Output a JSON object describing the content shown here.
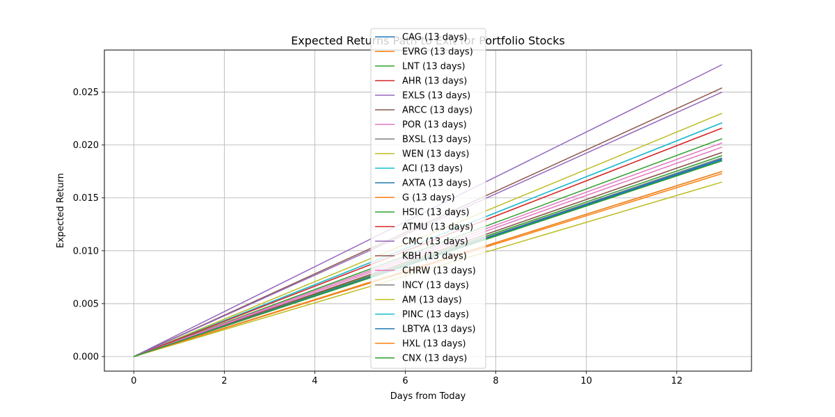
{
  "chart_data": {
    "type": "line",
    "title": "Expected Returns Path to Exit for Portfolio Stocks",
    "xlabel": "Days from Today",
    "ylabel": "Expected Return",
    "xlim": [
      -0.65,
      13.65
    ],
    "ylim": [
      -0.00138,
      0.02898
    ],
    "xticks": [
      0,
      2,
      4,
      6,
      8,
      10,
      12
    ],
    "xtick_labels": [
      "0",
      "2",
      "4",
      "6",
      "8",
      "10",
      "12"
    ],
    "yticks": [
      0.0,
      0.005,
      0.01,
      0.015,
      0.02,
      0.025
    ],
    "ytick_labels": [
      "0.000",
      "0.005",
      "0.010",
      "0.015",
      "0.020",
      "0.025"
    ],
    "grid": true,
    "legend_position": "upper-center",
    "series": [
      {
        "name": "CAG (13 days)",
        "color": "#1f77b4",
        "x": [
          0,
          13
        ],
        "y": [
          0.0,
          0.0221
        ]
      },
      {
        "name": "EVRG (13 days)",
        "color": "#ff7f0e",
        "x": [
          0,
          13
        ],
        "y": [
          0.0,
          0.0173
        ]
      },
      {
        "name": "LNT (13 days)",
        "color": "#2ca02c",
        "x": [
          0,
          13
        ],
        "y": [
          0.0,
          0.0206
        ]
      },
      {
        "name": "AHR (13 days)",
        "color": "#d62728",
        "x": [
          0,
          13
        ],
        "y": [
          0.0,
          0.0216
        ]
      },
      {
        "name": "EXLS (13 days)",
        "color": "#9467bd",
        "x": [
          0,
          13
        ],
        "y": [
          0.0,
          0.0276
        ]
      },
      {
        "name": "ARCC (13 days)",
        "color": "#8c564b",
        "x": [
          0,
          13
        ],
        "y": [
          0.0,
          0.0254
        ]
      },
      {
        "name": "POR (13 days)",
        "color": "#e377c2",
        "x": [
          0,
          13
        ],
        "y": [
          0.0,
          0.0202
        ]
      },
      {
        "name": "BXSL (13 days)",
        "color": "#7f7f7f",
        "x": [
          0,
          13
        ],
        "y": [
          0.0,
          0.0193
        ]
      },
      {
        "name": "WEN (13 days)",
        "color": "#bcbd22",
        "x": [
          0,
          13
        ],
        "y": [
          0.0,
          0.023
        ]
      },
      {
        "name": "ACI (13 days)",
        "color": "#17becf",
        "x": [
          0,
          13
        ],
        "y": [
          0.0,
          0.0221
        ]
      },
      {
        "name": "AXTA (13 days)",
        "color": "#1f77b4",
        "x": [
          0,
          13
        ],
        "y": [
          0.0,
          0.0186
        ]
      },
      {
        "name": "G (13 days)",
        "color": "#ff7f0e",
        "x": [
          0,
          13
        ],
        "y": [
          0.0,
          0.0175
        ]
      },
      {
        "name": "HSIC (13 days)",
        "color": "#2ca02c",
        "x": [
          0,
          13
        ],
        "y": [
          0.0,
          0.019
        ]
      },
      {
        "name": "ATMU (13 days)",
        "color": "#d62728",
        "x": [
          0,
          13
        ],
        "y": [
          0.0,
          0.0216
        ]
      },
      {
        "name": "CMC (13 days)",
        "color": "#9467bd",
        "x": [
          0,
          13
        ],
        "y": [
          0.0,
          0.025
        ]
      },
      {
        "name": "KBH (13 days)",
        "color": "#8c564b",
        "x": [
          0,
          13
        ],
        "y": [
          0.0,
          0.0193
        ]
      },
      {
        "name": "CHRW (13 days)",
        "color": "#e377c2",
        "x": [
          0,
          13
        ],
        "y": [
          0.0,
          0.0198
        ]
      },
      {
        "name": "INCY (13 days)",
        "color": "#7f7f7f",
        "x": [
          0,
          13
        ],
        "y": [
          0.0,
          0.0188
        ]
      },
      {
        "name": "AM (13 days)",
        "color": "#bcbd22",
        "x": [
          0,
          13
        ],
        "y": [
          0.0,
          0.0165
        ]
      },
      {
        "name": "PINC (13 days)",
        "color": "#17becf",
        "x": [
          0,
          13
        ],
        "y": [
          0.0,
          0.0175
        ]
      },
      {
        "name": "LBTYA (13 days)",
        "color": "#1f77b4",
        "x": [
          0,
          13
        ],
        "y": [
          0.0,
          0.0187
        ]
      },
      {
        "name": "HXL (13 days)",
        "color": "#ff7f0e",
        "x": [
          0,
          13
        ],
        "y": [
          0.0,
          0.0175
        ]
      },
      {
        "name": "CNX (13 days)",
        "color": "#2ca02c",
        "x": [
          0,
          13
        ],
        "y": [
          0.0,
          0.0185
        ]
      }
    ]
  }
}
